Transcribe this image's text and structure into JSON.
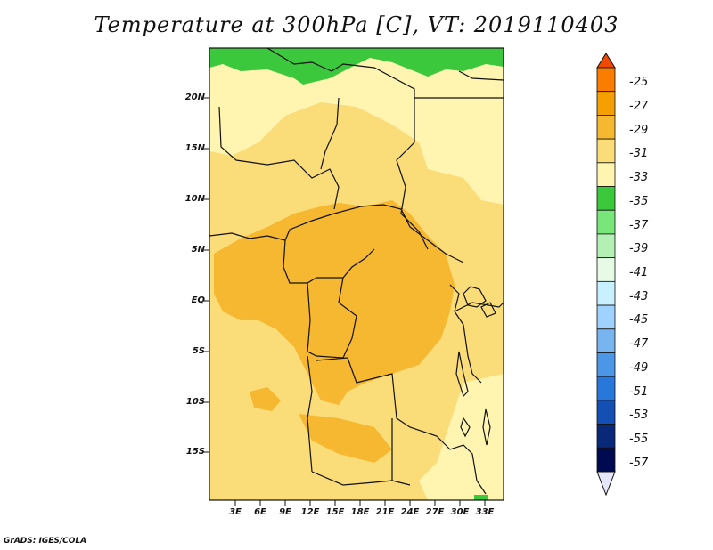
{
  "title": "Temperature at 300hPa [C], VT: 2019110403",
  "credit": "GrADS: IGES/COLA",
  "map": {
    "lat_labels": [
      "20N",
      "15N",
      "10N",
      "5N",
      "EQ",
      "5S",
      "10S",
      "15S"
    ],
    "lon_labels": [
      "3E",
      "6E",
      "9E",
      "12E",
      "15E",
      "18E",
      "21E",
      "24E",
      "27E",
      "30E",
      "33E"
    ]
  },
  "colorbar": {
    "labels": [
      "-25",
      "-27",
      "-29",
      "-31",
      "-33",
      "-35",
      "-37",
      "-39",
      "-41",
      "-43",
      "-45",
      "-47",
      "-49",
      "-51",
      "-53",
      "-55",
      "-57"
    ],
    "colors": [
      "#f04a00",
      "#fa7d00",
      "#f5a000",
      "#f5b830",
      "#fadc78",
      "#fff5b0",
      "#3cc83c",
      "#78e678",
      "#b4f0b4",
      "#e6fae6",
      "#c8f0ff",
      "#a0d2ff",
      "#78b4f0",
      "#4b96e6",
      "#2878dc",
      "#1450b4",
      "#0a2878",
      "#000a50",
      "#e6e6fa"
    ]
  },
  "fill_colors": {
    "lightest": "#fff5b0",
    "light": "#fadc78",
    "mid": "#f5b830",
    "green": "#3cc83c",
    "green_light": "#78e678"
  }
}
